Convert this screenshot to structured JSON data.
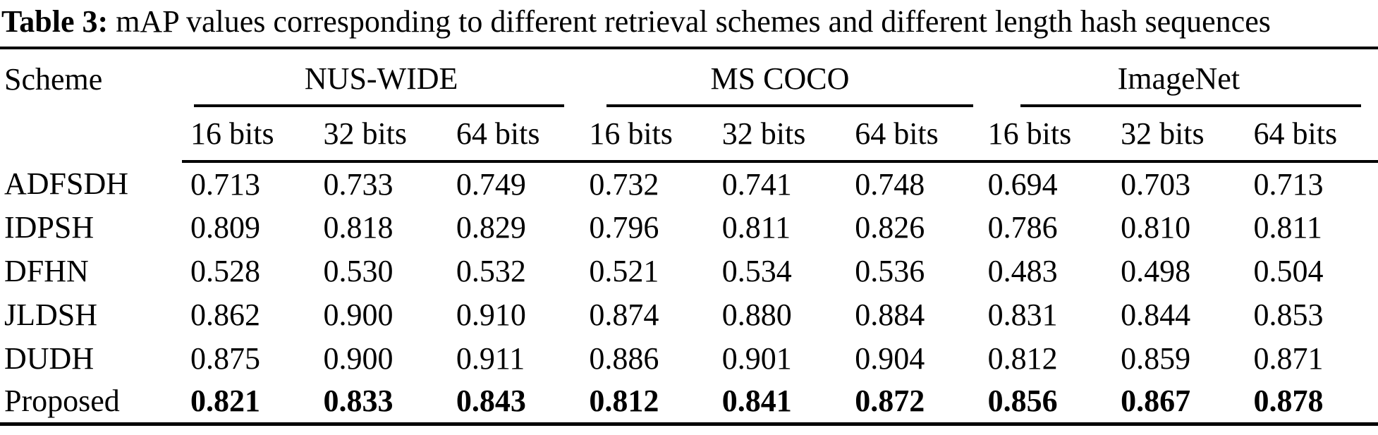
{
  "caption": {
    "label": "Table 3:",
    "text": " mAP values corresponding to different retrieval schemes and different length hash sequences"
  },
  "colors": {
    "text": "#000000",
    "background": "#ffffff",
    "rules": "#000000"
  },
  "table": {
    "scheme_header": "Scheme",
    "groups": [
      {
        "name": "NUS-WIDE",
        "bits": [
          "16 bits",
          "32 bits",
          "64 bits"
        ]
      },
      {
        "name": "MS COCO",
        "bits": [
          "16 bits",
          "32 bits",
          "64 bits"
        ]
      },
      {
        "name": "ImageNet",
        "bits": [
          "16 bits",
          "32 bits",
          "64 bits"
        ]
      }
    ],
    "rows": [
      {
        "scheme": "ADFSDH",
        "bold": false,
        "values": [
          "0.713",
          "0.733",
          "0.749",
          "0.732",
          "0.741",
          "0.748",
          "0.694",
          "0.703",
          "0.713"
        ]
      },
      {
        "scheme": "IDPSH",
        "bold": false,
        "values": [
          "0.809",
          "0.818",
          "0.829",
          "0.796",
          "0.811",
          "0.826",
          "0.786",
          "0.810",
          "0.811"
        ]
      },
      {
        "scheme": "DFHN",
        "bold": false,
        "values": [
          "0.528",
          "0.530",
          "0.532",
          "0.521",
          "0.534",
          "0.536",
          "0.483",
          "0.498",
          "0.504"
        ]
      },
      {
        "scheme": "JLDSH",
        "bold": false,
        "values": [
          "0.862",
          "0.900",
          "0.910",
          "0.874",
          "0.880",
          "0.884",
          "0.831",
          "0.844",
          "0.853"
        ]
      },
      {
        "scheme": "DUDH",
        "bold": false,
        "values": [
          "0.875",
          "0.900",
          "0.911",
          "0.886",
          "0.901",
          "0.904",
          "0.812",
          "0.859",
          "0.871"
        ]
      },
      {
        "scheme": "Proposed",
        "bold": true,
        "values": [
          "0.821",
          "0.833",
          "0.843",
          "0.812",
          "0.841",
          "0.872",
          "0.856",
          "0.867",
          "0.878"
        ]
      }
    ]
  }
}
